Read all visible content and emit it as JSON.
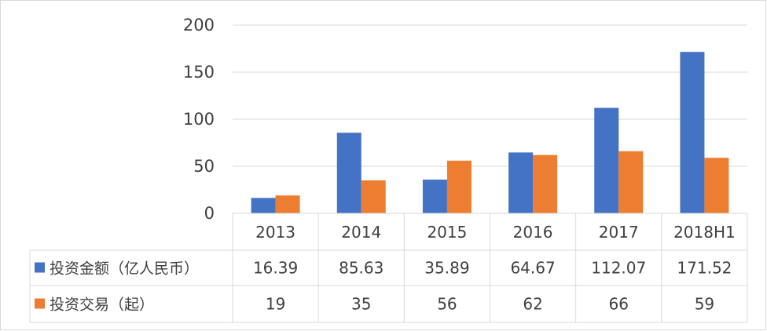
{
  "chart_data": {
    "type": "bar",
    "categories": [
      "2013",
      "2014",
      "2015",
      "2016",
      "2017",
      "2018H1"
    ],
    "series": [
      {
        "name": "投资金额（亿人民币）",
        "values": [
          16.39,
          85.63,
          35.89,
          64.67,
          112.07,
          171.52
        ],
        "labels": [
          "16.39",
          "85.63",
          "35.89",
          "64.67",
          "112.07",
          "171.52"
        ],
        "color": "#4472c4"
      },
      {
        "name": "投资交易（起）",
        "values": [
          19,
          35,
          56,
          62,
          66,
          59
        ],
        "labels": [
          "19",
          "35",
          "56",
          "62",
          "66",
          "59"
        ],
        "color": "#ed7d31"
      }
    ],
    "yticks": [
      "0",
      "50",
      "100",
      "150",
      "200"
    ],
    "ylim": [
      0,
      200
    ],
    "grid": true,
    "legend": "data-table"
  }
}
